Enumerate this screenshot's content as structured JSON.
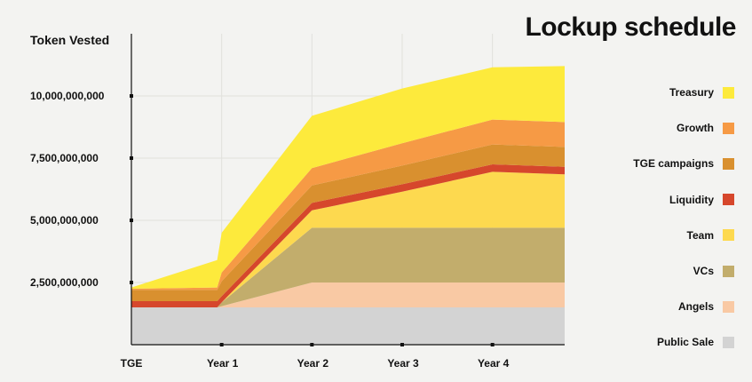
{
  "chart_data": {
    "type": "area",
    "stacked": true,
    "title": "Lockup schedule",
    "ylabel": "Token Vested",
    "xlabel": "",
    "x": [
      0,
      0.95,
      1,
      2,
      3,
      4,
      4.8
    ],
    "x_ticks": [
      0,
      1,
      2,
      3,
      4
    ],
    "x_tick_labels": [
      "TGE",
      "Year 1",
      "Year 2",
      "Year 3",
      "Year 4"
    ],
    "y_ticks": [
      2500000000,
      5000000000,
      7500000000,
      10000000000
    ],
    "y_tick_labels": [
      "2,500,000,000",
      "5,000,000,000",
      "7,500,000,000",
      "10,000,000,000"
    ],
    "ylim": [
      0,
      12000000000
    ],
    "xlim": [
      0,
      4.8
    ],
    "grid": true,
    "legend_position": "right",
    "series": [
      {
        "name": "Public Sale",
        "color": "#d3d3d3",
        "values": [
          1500000000,
          1500000000,
          1500000000,
          1500000000,
          1500000000,
          1500000000,
          1500000000
        ]
      },
      {
        "name": "Angels",
        "color": "#f9c9a4",
        "values": [
          0,
          0,
          50000000,
          1000000000,
          1000000000,
          1000000000,
          1000000000
        ]
      },
      {
        "name": "VCs",
        "color": "#c2ad6c",
        "values": [
          0,
          0,
          150000000,
          2200000000,
          2200000000,
          2200000000,
          2200000000
        ]
      },
      {
        "name": "Team",
        "color": "#fdd94f",
        "values": [
          0,
          0,
          0,
          700000000,
          1450000000,
          2250000000,
          2150000000
        ]
      },
      {
        "name": "Liquidity",
        "color": "#d6472c",
        "values": [
          250000000,
          250000000,
          250000000,
          300000000,
          300000000,
          300000000,
          300000000
        ]
      },
      {
        "name": "TGE campaigns",
        "color": "#d9902f",
        "values": [
          450000000,
          450000000,
          600000000,
          700000000,
          750000000,
          800000000,
          800000000
        ]
      },
      {
        "name": "Growth",
        "color": "#f69a45",
        "values": [
          50000000,
          100000000,
          350000000,
          700000000,
          900000000,
          1000000000,
          1000000000
        ]
      },
      {
        "name": "Treasury",
        "color": "#fdea3c",
        "values": [
          50000000,
          1100000000,
          1600000000,
          2100000000,
          2200000000,
          2100000000,
          2250000000
        ]
      }
    ]
  }
}
